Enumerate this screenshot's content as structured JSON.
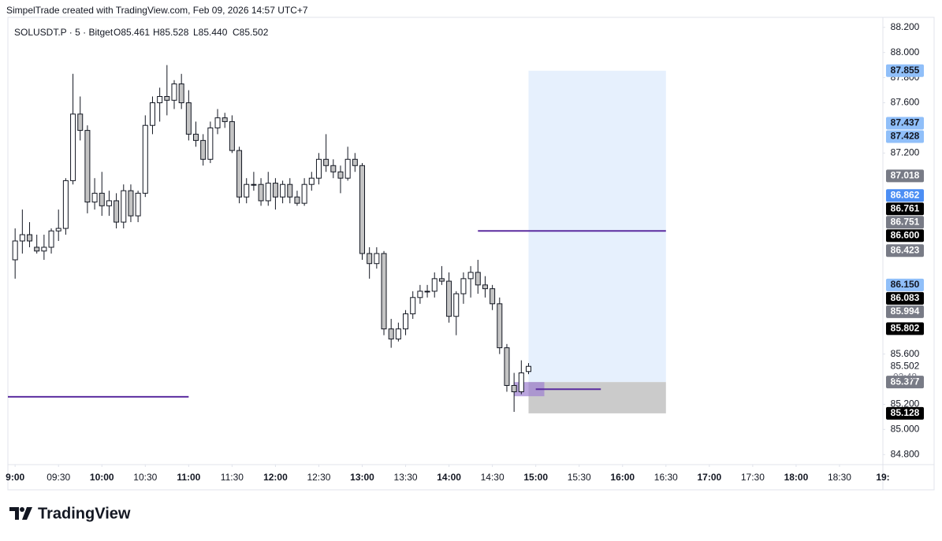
{
  "header": {
    "credit": "SimpelTrade created with TradingView.com, Feb 09, 2026 14:57 UTC+7",
    "symbol": "SOLUSDT.P · 5 · Bitget",
    "ohlc": [
      "O85.461",
      "H85.528",
      "L85.440",
      "C85.502"
    ]
  },
  "footer": {
    "brand": "TradingView"
  },
  "chart_data": {
    "type": "candlestick",
    "x": [
      "09:00",
      "09:05",
      "09:10",
      "09:15",
      "09:20",
      "09:25",
      "09:30",
      "09:35",
      "09:40",
      "09:45",
      "09:50",
      "09:55",
      "10:00",
      "10:05",
      "10:10",
      "10:15",
      "10:20",
      "10:25",
      "10:30",
      "10:35",
      "10:40",
      "10:45",
      "10:50",
      "10:55",
      "11:00",
      "11:05",
      "11:10",
      "11:15",
      "11:20",
      "11:25",
      "11:30",
      "11:35",
      "11:40",
      "11:45",
      "11:50",
      "11:55",
      "12:00",
      "12:05",
      "12:10",
      "12:15",
      "12:20",
      "12:25",
      "12:30",
      "12:35",
      "12:40",
      "12:45",
      "12:50",
      "12:55",
      "13:00",
      "13:05",
      "13:10",
      "13:15",
      "13:20",
      "13:25",
      "13:30",
      "13:35",
      "13:40",
      "13:45",
      "13:50",
      "13:55",
      "14:00",
      "14:05",
      "14:10",
      "14:15",
      "14:20",
      "14:25",
      "14:30",
      "14:35",
      "14:40",
      "14:45",
      "14:50",
      "14:55"
    ],
    "open": [
      86.35,
      86.5,
      86.55,
      86.45,
      86.42,
      86.45,
      86.58,
      86.6,
      86.98,
      87.51,
      87.38,
      86.81,
      86.88,
      86.78,
      86.82,
      86.65,
      86.9,
      86.7,
      86.88,
      87.42,
      87.6,
      87.65,
      87.62,
      87.75,
      87.6,
      87.35,
      87.3,
      87.15,
      87.4,
      87.48,
      87.45,
      87.22,
      86.85,
      86.95,
      86.95,
      86.82,
      86.96,
      86.85,
      86.95,
      86.85,
      86.8,
      86.95,
      87.0,
      87.15,
      87.1,
      87.05,
      87.0,
      87.15,
      87.1,
      86.4,
      86.32,
      86.4,
      85.8,
      85.72,
      85.8,
      85.92,
      86.05,
      86.1,
      86.1,
      86.2,
      86.18,
      85.9,
      86.08,
      86.2,
      86.25,
      86.15,
      86.12,
      86.0,
      85.65,
      85.35,
      85.3,
      85.461
    ],
    "high": [
      86.6,
      86.75,
      86.65,
      86.55,
      86.55,
      86.6,
      86.75,
      87.0,
      87.83,
      87.65,
      87.42,
      87.0,
      87.05,
      86.9,
      86.88,
      86.95,
      86.95,
      86.9,
      87.5,
      87.65,
      87.72,
      87.9,
      87.78,
      87.83,
      87.7,
      87.45,
      87.35,
      87.45,
      87.55,
      87.52,
      87.5,
      87.25,
      87.0,
      87.05,
      87.0,
      87.05,
      87.0,
      86.98,
      87.0,
      86.9,
      87.0,
      87.05,
      87.2,
      87.35,
      87.15,
      87.1,
      87.25,
      87.2,
      87.12,
      86.45,
      86.45,
      86.42,
      85.88,
      85.85,
      85.95,
      86.1,
      86.15,
      86.15,
      86.25,
      86.3,
      86.25,
      86.1,
      86.25,
      86.3,
      86.35,
      86.22,
      86.15,
      86.05,
      85.68,
      85.45,
      85.55,
      85.528
    ],
    "low": [
      86.2,
      86.4,
      86.45,
      86.4,
      86.35,
      86.4,
      86.5,
      86.55,
      86.95,
      87.3,
      86.72,
      86.75,
      86.7,
      86.7,
      86.6,
      86.6,
      86.65,
      86.65,
      86.85,
      87.35,
      87.45,
      87.5,
      87.55,
      87.55,
      87.3,
      87.25,
      87.1,
      87.12,
      87.35,
      87.4,
      87.2,
      86.8,
      86.8,
      86.9,
      86.78,
      86.78,
      86.75,
      86.8,
      86.8,
      86.78,
      86.78,
      86.9,
      86.95,
      87.05,
      87.0,
      86.88,
      86.98,
      87.05,
      86.35,
      86.2,
      86.28,
      85.75,
      85.65,
      85.7,
      85.75,
      85.88,
      86.0,
      86.05,
      86.05,
      86.15,
      85.85,
      85.75,
      86.0,
      86.05,
      86.08,
      86.05,
      85.95,
      85.6,
      85.3,
      85.14,
      85.28,
      85.44
    ],
    "close": [
      86.5,
      86.55,
      86.5,
      86.42,
      86.45,
      86.58,
      86.6,
      86.98,
      87.51,
      87.38,
      86.81,
      86.88,
      86.78,
      86.82,
      86.65,
      86.9,
      86.7,
      86.88,
      87.42,
      87.6,
      87.65,
      87.62,
      87.75,
      87.6,
      87.35,
      87.3,
      87.15,
      87.4,
      87.48,
      87.45,
      87.22,
      86.85,
      86.95,
      86.95,
      86.82,
      86.96,
      86.85,
      86.95,
      86.85,
      86.8,
      86.95,
      87.0,
      87.15,
      87.1,
      87.05,
      87.0,
      87.15,
      87.1,
      86.4,
      86.32,
      86.4,
      85.8,
      85.72,
      85.8,
      85.92,
      86.05,
      86.1,
      86.1,
      86.2,
      86.18,
      85.9,
      86.08,
      86.2,
      86.25,
      86.15,
      86.12,
      86.0,
      85.65,
      85.35,
      85.3,
      85.45,
      85.502
    ],
    "up_color": "#ffffff",
    "down_color": "#c4c4c4",
    "wick_color": "#131722",
    "xlim": [
      "08:55",
      "19:00"
    ],
    "xticks": [
      {
        "value": "09:00",
        "label": "9:00"
      },
      "09:30",
      "10:00",
      "10:30",
      "11:00",
      "11:30",
      "12:00",
      "12:30",
      "13:00",
      "13:30",
      "14:00",
      "14:30",
      "15:00",
      "15:30",
      "16:00",
      "16:30",
      "17:00",
      "17:30",
      "18:00",
      "18:30",
      {
        "value": "19:00",
        "label": "19:"
      }
    ],
    "ylim": [
      84.72,
      88.28
    ],
    "yticks": [
      {
        "value": 88.2,
        "label": "88.200"
      },
      {
        "value": 88.0,
        "label": "88.000"
      },
      {
        "value": 87.8,
        "label": "87.800"
      },
      {
        "value": 87.6,
        "label": "87.600"
      },
      {
        "value": 87.2,
        "label": "87.200"
      },
      {
        "value": 85.6,
        "label": "85.600"
      },
      {
        "value": 85.2,
        "label": "85.200"
      },
      {
        "value": 85.0,
        "label": "85.000"
      },
      {
        "value": 84.8,
        "label": "84.800"
      }
    ],
    "lines": [
      {
        "from": "08:55",
        "to": "11:00",
        "value": 85.26,
        "color": "#5b2c9f"
      },
      {
        "from": "14:20",
        "to": "16:30",
        "value": 86.58,
        "color": "#5b2c9f"
      },
      {
        "from": "15:00",
        "to": "15:45",
        "value": 85.32,
        "color": "#5b2c9f"
      }
    ],
    "position": {
      "from": "14:55",
      "to": "16:30",
      "target": 87.855,
      "entry": 85.377,
      "stop": 85.128,
      "target_color": "#e6f0fd",
      "stop_color": "#cbcbcb",
      "handle_color": "#9c7fd0"
    },
    "price_labels": [
      {
        "value": 87.855,
        "label": "87.855",
        "color": "#90bff9",
        "text_color": "#131722"
      },
      {
        "value": 87.437,
        "label": "87.437",
        "color": "#90bff9",
        "text_color": "#131722"
      },
      {
        "value": 87.428,
        "label": "87.428",
        "color": "#90bff9",
        "text_color": "#131722"
      },
      {
        "value": 87.018,
        "label": "87.018",
        "color": "#787b86",
        "text_color": "#ffffff"
      },
      {
        "value": 86.862,
        "label": "86.862",
        "color": "#4c8ef4",
        "text_color": "#ffffff"
      },
      {
        "value": 86.761,
        "label": "86.761",
        "color": "#000000",
        "text_color": "#ffffff"
      },
      {
        "value": 86.751,
        "label": "86.751",
        "color": "#787b86",
        "text_color": "#ffffff"
      },
      {
        "value": 86.6,
        "label": "86.600",
        "color": "#000000",
        "text_color": "#ffffff"
      },
      {
        "value": 86.423,
        "label": "86.423",
        "color": "#787b86",
        "text_color": "#ffffff"
      },
      {
        "value": 86.15,
        "label": "86.150",
        "color": "#90bff9",
        "text_color": "#131722"
      },
      {
        "value": 86.083,
        "label": "86.083",
        "color": "#000000",
        "text_color": "#ffffff"
      },
      {
        "value": 85.994,
        "label": "85.994",
        "color": "#787b86",
        "text_color": "#ffffff"
      },
      {
        "value": 85.802,
        "label": "85.802",
        "color": "#000000",
        "text_color": "#ffffff"
      },
      {
        "value": 85.377,
        "label": "85.377",
        "color": "#787b86",
        "text_color": "#ffffff"
      },
      {
        "value": 85.128,
        "label": "85.128",
        "color": "#000000",
        "text_color": "#ffffff"
      }
    ],
    "last_price": {
      "value": 85.502,
      "label": "85.502"
    },
    "countdown": "02:48"
  }
}
